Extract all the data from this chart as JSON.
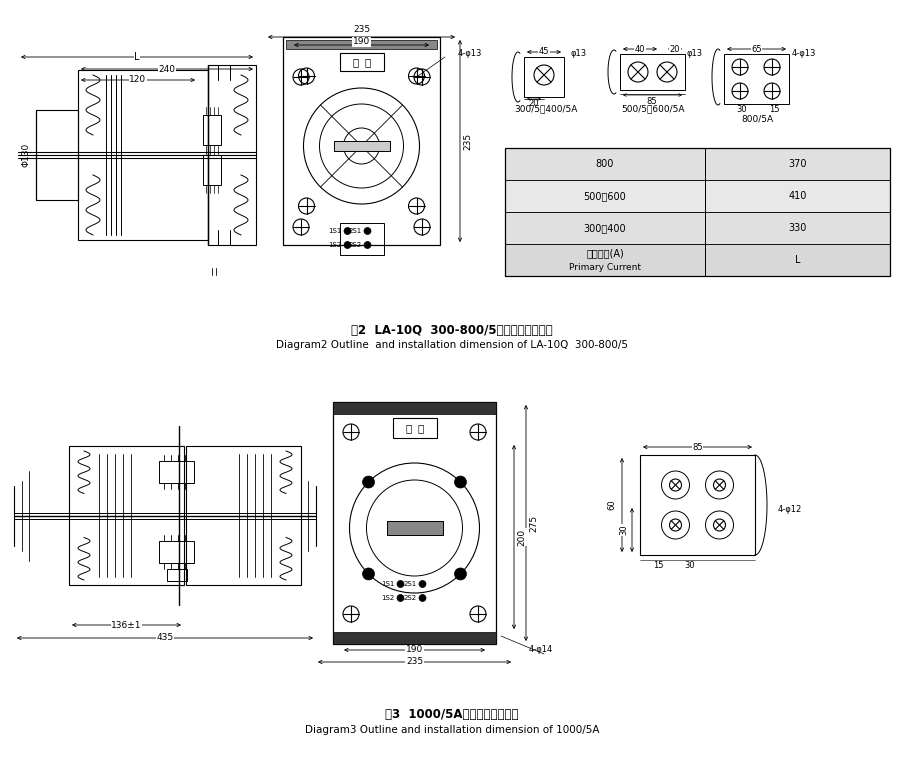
{
  "title1_cn": "图2  LA-10Q  300-800/5外形及安装尺寸图",
  "title1_en": "Diagram2 Outline  and installation dimension of LA-10Q  300-800/5",
  "title2_cn": "图3  1000/5A外形及安装尺寸图",
  "title2_en": "Diagram3 Outline and installation dimension of 1000/5A",
  "table_rows": [
    [
      "800",
      "370"
    ],
    [
      "500、600",
      "410"
    ],
    [
      "300、400",
      "330"
    ],
    [
      "一次电流(A)\nPrimary Current",
      "L"
    ]
  ]
}
